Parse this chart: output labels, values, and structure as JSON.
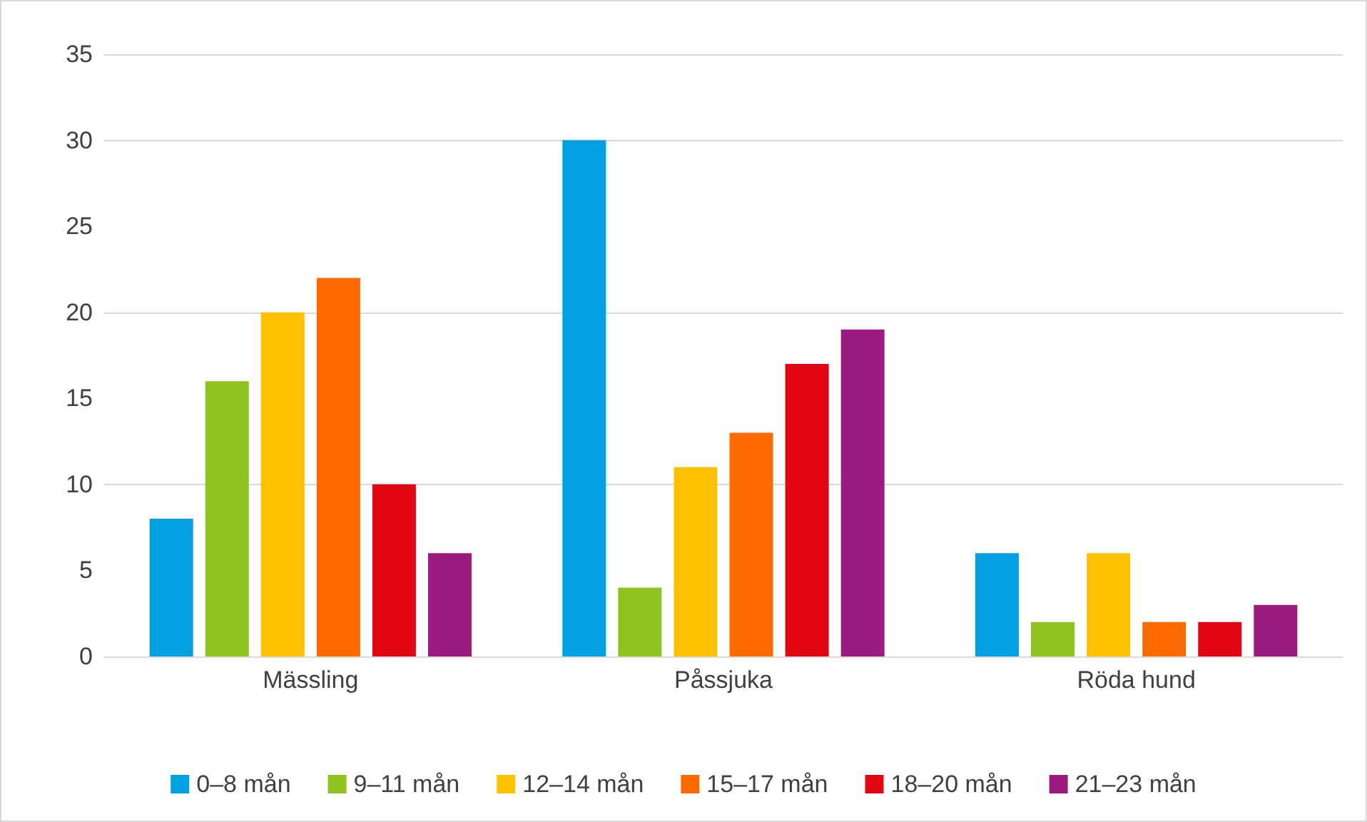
{
  "chart_data": {
    "type": "bar",
    "categories": [
      "Mässling",
      "Påssjuka",
      "Röda hund"
    ],
    "series": [
      {
        "name": "0–8 mån",
        "color": "#00a0e3",
        "values": [
          8,
          30,
          6
        ]
      },
      {
        "name": "9–11 mån",
        "color": "#8dc21f",
        "values": [
          16,
          4,
          2
        ]
      },
      {
        "name": "12–14 mån",
        "color": "#ffc000",
        "values": [
          20,
          11,
          6
        ]
      },
      {
        "name": "15–17 mån",
        "color": "#ff6a00",
        "values": [
          22,
          13,
          2
        ]
      },
      {
        "name": "18–20 mån",
        "color": "#e30613",
        "values": [
          10,
          17,
          2
        ]
      },
      {
        "name": "21–23 mån",
        "color": "#9b1b7f",
        "values": [
          6,
          19,
          3
        ]
      }
    ],
    "ylim": [
      0,
      35
    ],
    "yticks": [
      0,
      5,
      10,
      15,
      20,
      25,
      30,
      35
    ],
    "grid": "y",
    "legend": "bottom"
  }
}
